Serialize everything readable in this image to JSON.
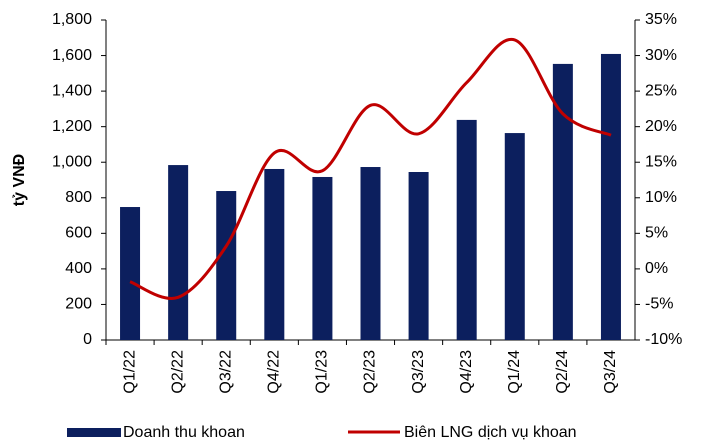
{
  "chart_data": {
    "type": "bar-line",
    "y_label": "tỷ VNĐ",
    "categories": [
      "Q1/22",
      "Q2/22",
      "Q3/22",
      "Q4/22",
      "Q1/23",
      "Q2/23",
      "Q3/23",
      "Q4/23",
      "Q1/24",
      "Q2/24",
      "Q3/24"
    ],
    "series": [
      {
        "name": "Doanh thu khoan",
        "type": "bar",
        "color": "#0c1f5e",
        "values": [
          748,
          984,
          838,
          962,
          917,
          973,
          945,
          1238,
          1164,
          1553,
          1609
        ]
      },
      {
        "name": "Biên LNG dịch vụ khoan",
        "type": "line",
        "axis": "y2",
        "smooth": true,
        "color": "#c00000",
        "values": [
          -1.8,
          -4.0,
          3.2,
          16.3,
          13.8,
          23.0,
          19.0,
          26.2,
          32.2,
          21.8,
          18.8
        ]
      }
    ],
    "ylim": [
      0,
      1800
    ],
    "yticks": [
      0,
      200,
      400,
      600,
      800,
      {
        "value": 1000,
        "label": "1,000"
      },
      {
        "value": 1200,
        "label": "1,200"
      },
      {
        "value": 1400,
        "label": "1,400"
      },
      {
        "value": 1600,
        "label": "1,600"
      },
      {
        "value": 1800,
        "label": "1,800"
      }
    ],
    "y2lim": [
      -10,
      35
    ],
    "y2ticks": [
      {
        "value": -10,
        "label": "-10%"
      },
      {
        "value": -5,
        "label": "-5%"
      },
      {
        "value": 0,
        "label": "0%"
      },
      {
        "value": 5,
        "label": "5%"
      },
      {
        "value": 10,
        "label": "10%"
      },
      {
        "value": 15,
        "label": "15%"
      },
      {
        "value": 20,
        "label": "20%"
      },
      {
        "value": 25,
        "label": "25%"
      },
      {
        "value": 30,
        "label": "30%"
      },
      {
        "value": 35,
        "label": "35%"
      }
    ],
    "grid": false,
    "legend": "bottom"
  }
}
